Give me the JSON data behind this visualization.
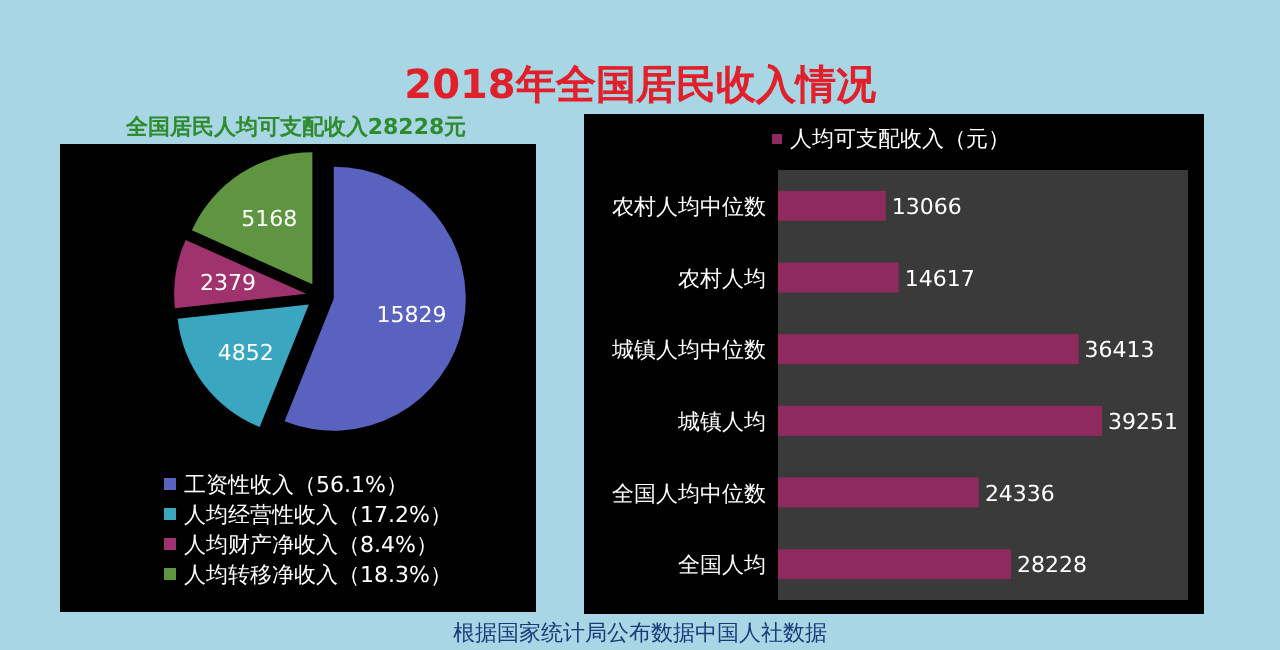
{
  "chart_data": [
    {
      "type": "pie",
      "title": "2018年全国居民收入情况",
      "subtitle": "全国居民人均可支配收入28228元",
      "categories": [
        "工资性收入（56.1%）",
        "人均经营性收入（17.2%）",
        "人均财产净收入（8.4%）",
        "人均转移净收入（18.3%）"
      ],
      "values": [
        15829,
        4852,
        2379,
        5168
      ],
      "colors": [
        "#5a62c0",
        "#3aa6bf",
        "#a0336e",
        "#5f9440"
      ],
      "data_labels": true,
      "legend": "bottom",
      "annotations": [
        "根据国家统计局公布数据中国人社数据"
      ]
    },
    {
      "type": "bar",
      "orientation": "horizontal",
      "categories": [
        "农村人均中位数",
        "农村人均",
        "城镇人均中位数",
        "城镇人均",
        "全国人均中位数",
        "全国人均"
      ],
      "series": [
        {
          "name": "人均可支配收入（元）",
          "color": "#8e2a5e",
          "values": [
            13066,
            14617,
            36413,
            39251,
            24336,
            28228
          ]
        }
      ],
      "data_labels": true,
      "legend": "top"
    }
  ]
}
